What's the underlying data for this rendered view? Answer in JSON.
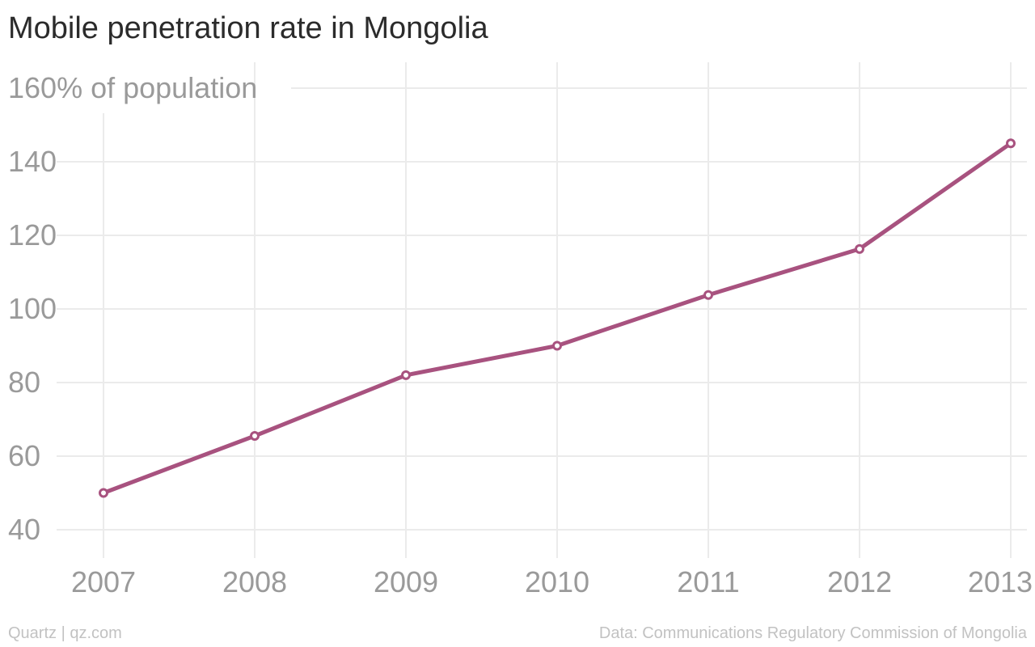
{
  "chart_data": {
    "type": "line",
    "title": "Mobile penetration rate in Mongolia",
    "ylabel": "% of population",
    "x": [
      "2007",
      "2008",
      "2009",
      "2010",
      "2011",
      "2012",
      "2013"
    ],
    "series": [
      {
        "values": [
          50,
          65.5,
          82,
          90,
          103.8,
          116.3,
          145
        ]
      }
    ],
    "yticks": [
      40,
      60,
      80,
      100,
      120,
      140,
      160
    ],
    "ylim": [
      35,
      165
    ],
    "grid": true,
    "line_color": "#a8527f"
  },
  "footer": {
    "source_left": "Quartz | qz.com",
    "source_right": "Data: Communications Regulatory Commission of Mongolia"
  }
}
